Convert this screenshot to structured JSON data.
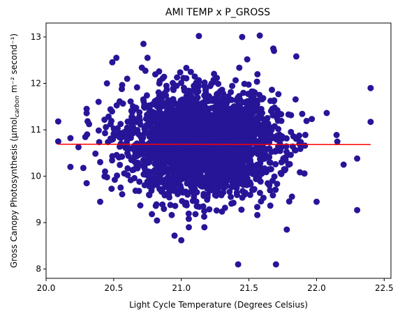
{
  "chart_data": {
    "type": "scatter",
    "title": "AMI TEMP x P_GROSS",
    "xlabel": "Light Cycle Temperature (Degrees Celsius)",
    "ylabel_prefix": "Gross Canopy Photosynthesis (μmol",
    "ylabel_sub": "carbon",
    "ylabel_suffix": " m⁻² second⁻¹)",
    "xlim": [
      20.0,
      22.55
    ],
    "ylim": [
      7.8,
      13.3
    ],
    "xticks": [
      "20.0",
      "20.5",
      "21.0",
      "21.5",
      "22.0",
      "22.5"
    ],
    "yticks": [
      "8",
      "9",
      "10",
      "11",
      "12",
      "13"
    ],
    "point_color": "#271598",
    "line_color": "#ff0000",
    "grid": false,
    "cloud": {
      "x_center": 21.15,
      "x_sd": 0.28,
      "y_center": 10.7,
      "y_sd": 0.55
    },
    "outliers": [
      [
        20.09,
        11.18
      ],
      [
        20.09,
        10.75
      ],
      [
        20.18,
        10.2
      ],
      [
        20.18,
        10.82
      ],
      [
        20.3,
        11.45
      ],
      [
        20.3,
        9.85
      ],
      [
        20.4,
        9.45
      ],
      [
        20.45,
        12.0
      ],
      [
        20.52,
        12.55
      ],
      [
        20.6,
        12.1
      ],
      [
        20.72,
        12.85
      ],
      [
        20.75,
        12.55
      ],
      [
        21.13,
        13.02
      ],
      [
        21.45,
        13.0
      ],
      [
        21.58,
        13.03
      ],
      [
        21.68,
        12.75
      ],
      [
        21.85,
        12.58
      ],
      [
        22.2,
        10.25
      ],
      [
        22.3,
        10.38
      ],
      [
        22.3,
        9.27
      ],
      [
        22.4,
        11.9
      ],
      [
        22.4,
        11.17
      ],
      [
        21.42,
        8.1
      ],
      [
        21.7,
        8.1
      ],
      [
        21.0,
        8.62
      ],
      [
        20.95,
        8.72
      ],
      [
        21.78,
        8.85
      ],
      [
        22.0,
        9.45
      ]
    ],
    "trend": {
      "x": [
        20.09,
        22.4
      ],
      "y": [
        10.69,
        10.68
      ]
    },
    "point_count": 2600
  }
}
